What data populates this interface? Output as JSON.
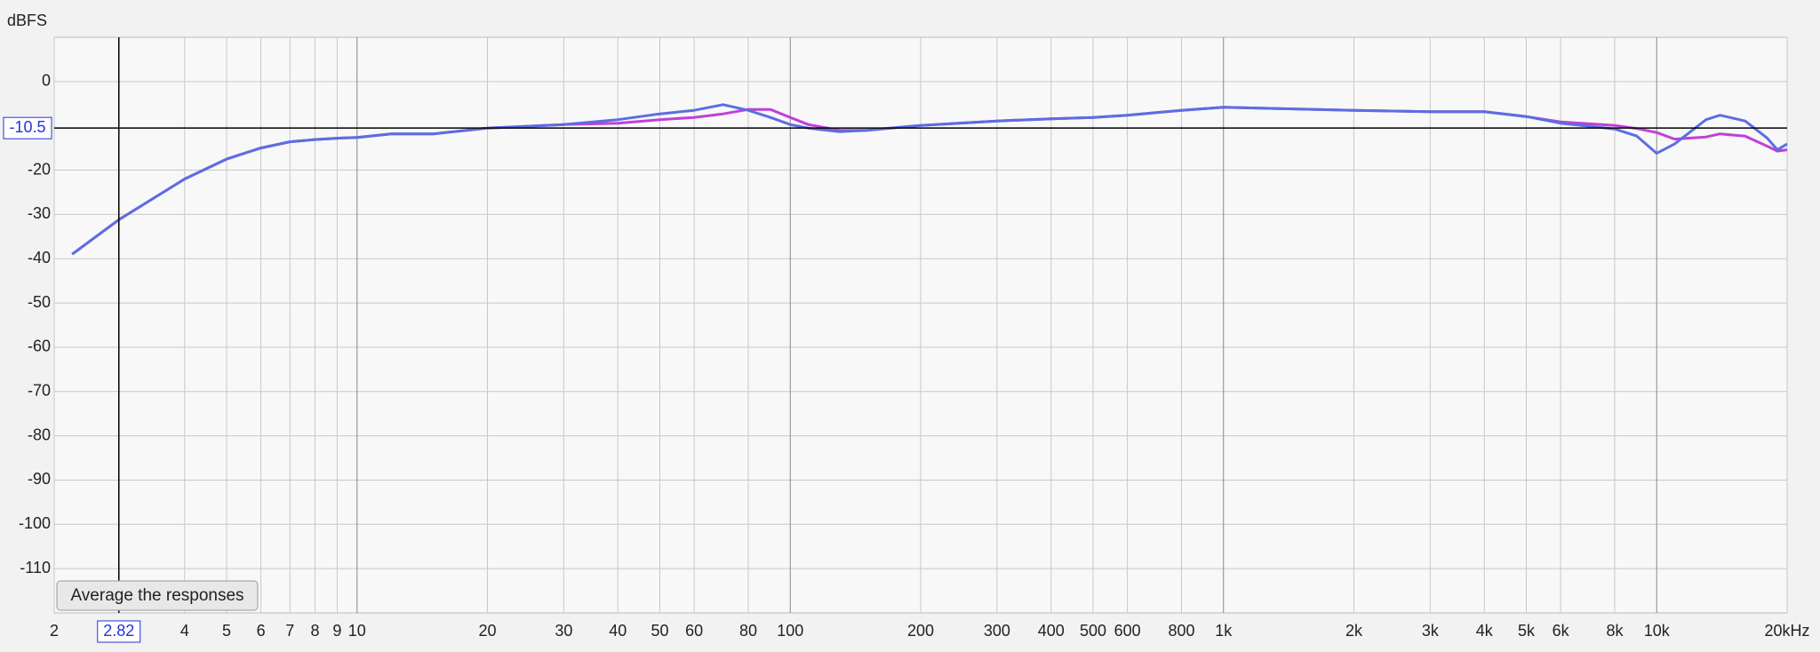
{
  "chart_data": {
    "type": "line",
    "ylabel": "dBFS",
    "xscale": "log",
    "xlim": [
      2,
      20000
    ],
    "ylim": [
      -120,
      10
    ],
    "xticks": [
      2,
      4,
      5,
      6,
      7,
      8,
      9,
      10,
      20,
      30,
      40,
      50,
      60,
      80,
      100,
      200,
      300,
      400,
      500,
      600,
      800,
      {
        "value": 1000,
        "label": "1k"
      },
      {
        "value": 2000,
        "label": "2k"
      },
      {
        "value": 3000,
        "label": "3k"
      },
      {
        "value": 4000,
        "label": "4k"
      },
      {
        "value": 5000,
        "label": "5k"
      },
      {
        "value": 6000,
        "label": "6k"
      },
      {
        "value": 8000,
        "label": "8k"
      },
      {
        "value": 10000,
        "label": "10k"
      },
      {
        "value": 20000,
        "label": "20kHz"
      }
    ],
    "yticks": [
      0,
      -20,
      -30,
      -40,
      -50,
      -60,
      -70,
      -80,
      -90,
      -100,
      -110
    ],
    "grid": true,
    "cursor_x": 2.82,
    "cursor_y": -10.5,
    "button": "Average the responses",
    "x": [
      2.2,
      2.82,
      4,
      5,
      6,
      7,
      8,
      9,
      10,
      12,
      15,
      20,
      30,
      40,
      50,
      60,
      70,
      80,
      90,
      100,
      110,
      130,
      150,
      200,
      300,
      400,
      500,
      600,
      800,
      1000,
      2000,
      3000,
      4000,
      5000,
      6000,
      8000,
      9000,
      10000,
      11000,
      13000,
      14000,
      16000,
      18000,
      19000,
      20000
    ],
    "series": [
      {
        "color": "#c040d8",
        "values": [
          -39,
          -31.2,
          -22,
          -17.5,
          -15,
          -13.6,
          -13.1,
          -12.8,
          -12.6,
          -11.8,
          -11.8,
          -10.5,
          -9.7,
          -9.4,
          -8.6,
          -8.1,
          -7.3,
          -6.3,
          -6.3,
          -8.1,
          -9.7,
          -11,
          -11,
          -9.9,
          -8.9,
          -8.4,
          -8.1,
          -7.6,
          -6.5,
          -5.8,
          -6.5,
          -6.8,
          -6.8,
          -7.9,
          -9.1,
          -9.9,
          -10.6,
          -11.5,
          -13,
          -12.5,
          -11.8,
          -12.3,
          -14.6,
          -15.7,
          -15.4
        ]
      },
      {
        "color": "#5b6ee2",
        "values": [
          -39,
          -31.2,
          -22,
          -17.5,
          -15,
          -13.6,
          -13.1,
          -12.8,
          -12.6,
          -11.8,
          -11.8,
          -10.5,
          -9.7,
          -8.6,
          -7.3,
          -6.5,
          -5.2,
          -6.5,
          -8.1,
          -9.7,
          -10.5,
          -11.3,
          -11,
          -9.9,
          -8.9,
          -8.4,
          -8.1,
          -7.6,
          -6.5,
          -5.8,
          -6.5,
          -6.8,
          -6.8,
          -7.9,
          -9.4,
          -10.7,
          -12.3,
          -16.2,
          -14.1,
          -8.6,
          -7.6,
          -8.9,
          -12.8,
          -15.4,
          -14.1
        ]
      }
    ]
  }
}
